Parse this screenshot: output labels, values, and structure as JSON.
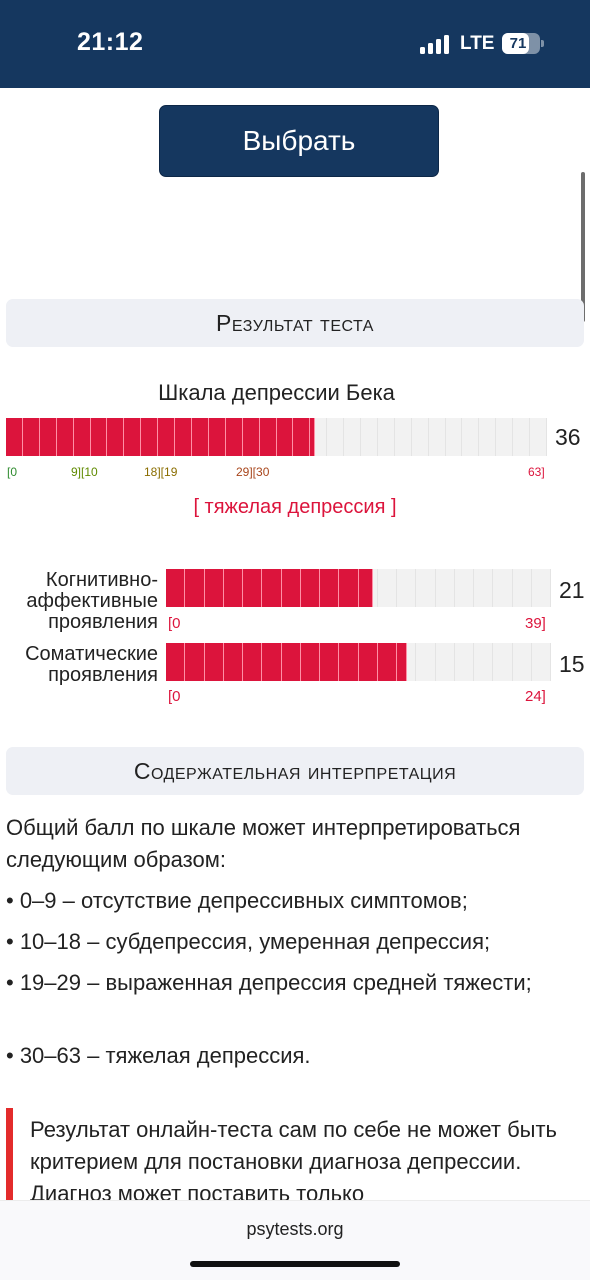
{
  "status_bar": {
    "time": "21:12",
    "network": "LTE",
    "battery": "71",
    "battery_level": 0.71,
    "background": "#15375f"
  },
  "button": {
    "label": "Выбрать"
  },
  "result": {
    "header": "Результат теста",
    "scale_title": "Шкала депрессии Бека",
    "score": 36,
    "max": 63,
    "level": "[ тяжелая депрессия ]",
    "ticks": [
      {
        "label": "[0",
        "color": "#2e8b2e"
      },
      {
        "label": "9][10",
        "color": "#5f8a00"
      },
      {
        "label": "18][19",
        "color": "#8a6d00"
      },
      {
        "label": "29][30",
        "color": "#a8461c"
      },
      {
        "label": "63]",
        "color": "#dc143c"
      }
    ],
    "subscales": [
      {
        "label": "Когнитивно-аффективные проявления",
        "score": 21,
        "max": 39,
        "min_label": "[0",
        "max_label": "39]"
      },
      {
        "label": "Соматические проявления",
        "score": 15,
        "max": 24,
        "min_label": "[0",
        "max_label": "24]"
      }
    ]
  },
  "interpretation": {
    "header": "Содержательная интерпретация",
    "intro": "Общий балл по шкале может интерпретироваться следующим образом:",
    "items": [
      "• 0–9 – отсутствие депрессивных симптомов;",
      "• 10–18 – субдепрессия, умеренная депрессия;",
      "• 19–29 – выраженная депрессия средней тяжести;",
      "• 30–63 – тяжелая депрессия."
    ],
    "note": "Результат онлайн-теста сам по себе не может быть критерием для постановки диагноза депрессии. Диагноз может поставить только"
  },
  "footer": {
    "site": "psytests.org"
  },
  "colors": {
    "accent": "#dc143c",
    "header_blue": "#15375f",
    "section_bg": "#eef0f5"
  }
}
